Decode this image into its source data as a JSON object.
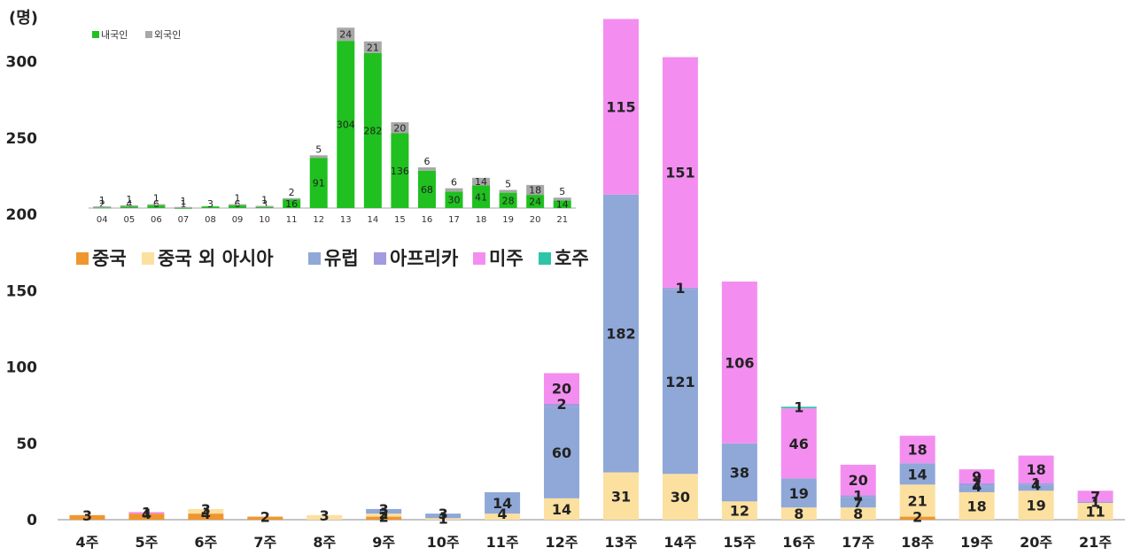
{
  "chart_data": [
    {
      "type": "bar",
      "stacked": true,
      "unit": "(명)",
      "ylim": [
        0,
        330
      ],
      "yticks": [
        0,
        50,
        100,
        150,
        200,
        250,
        300
      ],
      "grid": false,
      "legend_position": "top-left",
      "categories": [
        "4주",
        "5주",
        "6주",
        "7주",
        "8주",
        "9주",
        "10주",
        "11주",
        "12주",
        "13주",
        "14주",
        "15주",
        "16주",
        "17주",
        "18주",
        "19주",
        "20주",
        "21주"
      ],
      "series": [
        {
          "name": "중국",
          "color": "#F0962E",
          "values": [
            3,
            4,
            4,
            2,
            0,
            2,
            0,
            0,
            0,
            0,
            0,
            0,
            0,
            0,
            2,
            0,
            0,
            0
          ]
        },
        {
          "name": "중국 외 아시아",
          "color": "#FCE0A0",
          "values": [
            0,
            0,
            3,
            0,
            3,
            2,
            1,
            4,
            14,
            31,
            30,
            12,
            8,
            8,
            21,
            18,
            19,
            11
          ]
        },
        {
          "name": "유럽",
          "color": "#8FA8D8",
          "values": [
            0,
            0,
            0,
            0,
            0,
            3,
            3,
            14,
            60,
            182,
            121,
            38,
            19,
            7,
            14,
            4,
            4,
            0
          ]
        },
        {
          "name": "아프리카",
          "color": "#A29BE0",
          "values": [
            0,
            0,
            0,
            0,
            0,
            0,
            0,
            0,
            2,
            0,
            1,
            0,
            0,
            1,
            0,
            2,
            1,
            1
          ]
        },
        {
          "name": "미주",
          "color": "#F38EF0",
          "values": [
            0,
            1,
            0,
            0,
            0,
            0,
            0,
            0,
            20,
            115,
            151,
            106,
            46,
            20,
            18,
            9,
            18,
            7
          ]
        },
        {
          "name": "호주",
          "color": "#2EC4A8",
          "values": [
            0,
            0,
            0,
            0,
            0,
            0,
            0,
            0,
            0,
            0,
            0,
            0,
            1,
            0,
            0,
            0,
            0,
            0
          ]
        }
      ],
      "data_labels": [
        {
          "category": "4주",
          "series": "중국",
          "text": "3"
        },
        {
          "category": "5주",
          "series": "중국",
          "text": "4"
        },
        {
          "category": "5주",
          "series": "미주",
          "text": "1"
        },
        {
          "category": "6주",
          "series": "중국",
          "text": "4"
        },
        {
          "category": "6주",
          "series": "중국 외 아시아",
          "text": "3"
        },
        {
          "category": "7주",
          "series": "중국",
          "text": "2"
        },
        {
          "category": "8주",
          "series": "중국 외 아시아",
          "text": "3"
        },
        {
          "category": "9주",
          "series": "중국",
          "text": "2"
        },
        {
          "category": "9주",
          "series": "중국 외 아시아",
          "text": "2"
        },
        {
          "category": "9주",
          "series": "유럽",
          "text": "3"
        },
        {
          "category": "10주",
          "series": "중국 외 아시아",
          "text": "1"
        },
        {
          "category": "10주",
          "series": "유럽",
          "text": "3"
        },
        {
          "category": "11주",
          "series": "중국 외 아시아",
          "text": "4"
        },
        {
          "category": "11주",
          "series": "유럽",
          "text": "14"
        },
        {
          "category": "12주",
          "series": "중국 외 아시아",
          "text": "14"
        },
        {
          "category": "12주",
          "series": "유럽",
          "text": "60"
        },
        {
          "category": "12주",
          "series": "아프리카",
          "text": "2"
        },
        {
          "category": "12주",
          "series": "미주",
          "text": "20"
        },
        {
          "category": "13주",
          "series": "중국 외 아시아",
          "text": "31"
        },
        {
          "category": "13주",
          "series": "유럽",
          "text": "182"
        },
        {
          "category": "13주",
          "series": "미주",
          "text": "115"
        },
        {
          "category": "14주",
          "series": "중국 외 아시아",
          "text": "30"
        },
        {
          "category": "14주",
          "series": "유럽",
          "text": "121"
        },
        {
          "category": "14주",
          "series": "아프리카",
          "text": "1"
        },
        {
          "category": "14주",
          "series": "미주",
          "text": "151"
        },
        {
          "category": "15주",
          "series": "중국 외 아시아",
          "text": "12"
        },
        {
          "category": "15주",
          "series": "유럽",
          "text": "38"
        },
        {
          "category": "15주",
          "series": "미주",
          "text": "106"
        },
        {
          "category": "16주",
          "series": "중국 외 아시아",
          "text": "8"
        },
        {
          "category": "16주",
          "series": "유럽",
          "text": "19"
        },
        {
          "category": "16주",
          "series": "미주",
          "text": "46"
        },
        {
          "category": "16주",
          "series": "호주",
          "text": "1"
        },
        {
          "category": "17주",
          "series": "중국 외 아시아",
          "text": "8"
        },
        {
          "category": "17주",
          "series": "아프리카",
          "text": "1"
        },
        {
          "category": "17주",
          "series": "유럽",
          "text": "7"
        },
        {
          "category": "17주",
          "series": "미주",
          "text": "20"
        },
        {
          "category": "18주",
          "series": "중국",
          "text": "2"
        },
        {
          "category": "18주",
          "series": "중국 외 아시아",
          "text": "21"
        },
        {
          "category": "18주",
          "series": "유럽",
          "text": "14"
        },
        {
          "category": "18주",
          "series": "미주",
          "text": "18"
        },
        {
          "category": "19주",
          "series": "중국 외 아시아",
          "text": "18"
        },
        {
          "category": "19주",
          "series": "유럽",
          "text": "4"
        },
        {
          "category": "19주",
          "series": "아프리카",
          "text": "2"
        },
        {
          "category": "19주",
          "series": "미주",
          "text": "9"
        },
        {
          "category": "20주",
          "series": "중국 외 아시아",
          "text": "19"
        },
        {
          "category": "20주",
          "series": "유럽",
          "text": "4"
        },
        {
          "category": "20주",
          "series": "아프리카",
          "text": "1"
        },
        {
          "category": "20주",
          "series": "미주",
          "text": "18"
        },
        {
          "category": "21주",
          "series": "중국 외 아시아",
          "text": "11"
        },
        {
          "category": "21주",
          "series": "아프리카",
          "text": "1"
        },
        {
          "category": "21주",
          "series": "미주",
          "text": "7"
        }
      ]
    },
    {
      "type": "bar",
      "stacked": true,
      "ylim": [
        0,
        330
      ],
      "legend_position": "top-left",
      "categories": [
        "04",
        "05",
        "06",
        "07",
        "08",
        "09",
        "10",
        "11",
        "12",
        "13",
        "14",
        "15",
        "16",
        "17",
        "18",
        "19",
        "20",
        "21"
      ],
      "series": [
        {
          "name": "내국인",
          "color": "#1FC01F",
          "values": [
            2,
            4,
            6,
            1,
            3,
            6,
            3,
            16,
            91,
            304,
            282,
            136,
            68,
            30,
            41,
            28,
            24,
            14
          ]
        },
        {
          "name": "외국인",
          "color": "#A8A8A8",
          "values": [
            1,
            1,
            1,
            1,
            0,
            1,
            1,
            2,
            5,
            24,
            21,
            20,
            6,
            6,
            14,
            5,
            18,
            5
          ]
        }
      ]
    }
  ]
}
